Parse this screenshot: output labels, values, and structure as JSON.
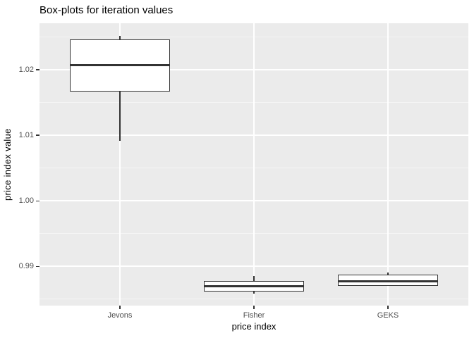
{
  "chart_data": {
    "type": "boxplot",
    "title": "Box-plots for iteration values",
    "xlabel": "price index",
    "ylabel": "price index value",
    "categories": [
      "Jevons",
      "Fisher",
      "GEKS"
    ],
    "series": [
      {
        "name": "Jevons",
        "whisker_low": 1.0091,
        "q1": 1.0167,
        "median": 1.0207,
        "q3": 1.0246,
        "whisker_high": 1.0252
      },
      {
        "name": "Fisher",
        "whisker_low": 0.9858,
        "q1": 0.9862,
        "median": 0.987,
        "q3": 0.9878,
        "whisker_high": 0.9885
      },
      {
        "name": "GEKS",
        "whisker_low": 0.987,
        "q1": 0.987,
        "median": 0.9877,
        "q3": 0.9887,
        "whisker_high": 0.989
      }
    ],
    "y_axis": {
      "ticks": [
        {
          "value": 0.99,
          "label": "0.99"
        },
        {
          "value": 1.0,
          "label": "1.00"
        },
        {
          "value": 1.01,
          "label": "1.01"
        },
        {
          "value": 1.02,
          "label": "1.02"
        }
      ],
      "minor_ticks": [
        0.985,
        0.995,
        1.005,
        1.015,
        1.025
      ],
      "range": [
        0.984,
        1.0271
      ]
    },
    "legend": false,
    "grid": true,
    "colors": {
      "figure_background": "#FFFFFF",
      "panel_background": "#EBEBEB",
      "grid_major": "#FFFFFF",
      "grid_minor": "#F5F5F5",
      "box_fill": "#FFFFFF",
      "box_border": "#333333",
      "median": "#333333",
      "tick_mark": "#333333",
      "axis_text": "#4D4D4D",
      "axis_title": "#000000",
      "title": "#000000"
    }
  }
}
